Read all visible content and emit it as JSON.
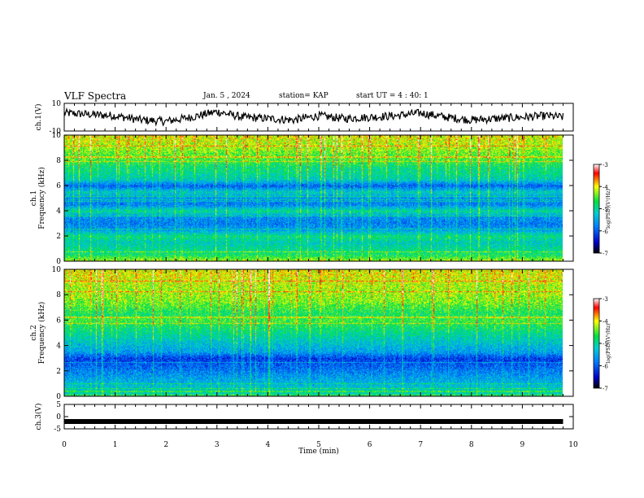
{
  "header": {
    "title": "VLF Spectra",
    "date": "Jan. 5 , 2024",
    "station": "station= KAP",
    "start_ut": "start UT =  4 : 40: 1"
  },
  "chart_data": [
    {
      "type": "line",
      "panel": "ch1-waveform",
      "ylabel": "ch.1(V)",
      "ylim": [
        -10,
        10
      ],
      "yticks": [
        "10",
        "-10"
      ],
      "xlim": [
        0,
        10
      ],
      "series": [
        {
          "color": "#000000",
          "x": [
            0,
            0.5,
            1,
            1.5,
            2,
            2.5,
            3,
            3.5,
            4,
            4.5,
            5,
            5.5,
            6,
            6.5,
            7,
            7.5,
            8,
            8.5,
            9,
            9.5,
            9.8
          ],
          "values": [
            3,
            2,
            1,
            -2,
            -3,
            0,
            4,
            0,
            -1,
            -2,
            1,
            -1,
            0,
            1,
            3,
            0,
            -2,
            -1,
            0,
            1,
            0
          ]
        }
      ]
    },
    {
      "type": "heatmap",
      "panel": "ch1-spectrogram",
      "ylabel": "ch.1\nFrequency  (kHz)",
      "ylim": [
        0,
        10
      ],
      "xlim": [
        0,
        10
      ],
      "yticks": [
        "0",
        "2",
        "4",
        "6",
        "8",
        "10"
      ],
      "data_end_min": 9.8,
      "colorbar": {
        "ticks": [
          "-3",
          "-4",
          "-5",
          "-6",
          "-7"
        ],
        "label": "log(PSD)(V²/Hz)",
        "range": [
          -7,
          -3
        ]
      },
      "profile_freq_khz": [
        0,
        0.5,
        1,
        1.5,
        2,
        2.5,
        3,
        3.5,
        4,
        4.5,
        5,
        5.5,
        6,
        6.5,
        7,
        7.5,
        8,
        8.5,
        9,
        9.5,
        10
      ],
      "profile_log_psd": [
        -4.2,
        -4.8,
        -5.0,
        -5.2,
        -4.9,
        -5.6,
        -5.8,
        -5.7,
        -5.0,
        -5.8,
        -5.7,
        -5.2,
        -6.0,
        -5.2,
        -5.0,
        -4.9,
        -4.6,
        -4.5,
        -4.3,
        -4.2,
        -4.1
      ]
    },
    {
      "type": "heatmap",
      "panel": "ch2-spectrogram",
      "ylabel": "ch.2\nFrequency  (kHz)",
      "ylim": [
        0,
        10
      ],
      "xlim": [
        0,
        10
      ],
      "yticks": [
        "0",
        "2",
        "4",
        "6",
        "8",
        "10"
      ],
      "data_end_min": 9.8,
      "colorbar": {
        "ticks": [
          "-3",
          "-4",
          "-5",
          "-6",
          "-7"
        ],
        "label": "log(PSD)(V²/Hz)",
        "range": [
          -7,
          -3
        ]
      },
      "profile_freq_khz": [
        0,
        0.5,
        1,
        1.5,
        2,
        2.5,
        3,
        3.5,
        4,
        4.5,
        5,
        5.5,
        6,
        6.5,
        7,
        7.5,
        8,
        8.5,
        9,
        9.5,
        10
      ],
      "profile_log_psd": [
        -5.0,
        -5.2,
        -5.4,
        -5.6,
        -5.8,
        -6.0,
        -6.2,
        -5.6,
        -5.4,
        -5.2,
        -5.0,
        -4.8,
        -4.6,
        -4.8,
        -4.6,
        -4.4,
        -4.3,
        -4.3,
        -4.2,
        -4.1,
        -4.1
      ]
    },
    {
      "type": "line",
      "panel": "ch3-waveform",
      "ylabel": "ch.3(V)",
      "ylim": [
        -5,
        5
      ],
      "yticks": [
        "5",
        "0",
        "-5"
      ],
      "xlim": [
        0,
        10
      ],
      "xticks": [
        "0",
        "1",
        "2",
        "3",
        "4",
        "5",
        "6",
        "7",
        "8",
        "9",
        "10"
      ],
      "xlabel": "Time  (min)",
      "series": [
        {
          "color": "#000000",
          "x": [
            0,
            9.8
          ],
          "values": [
            -2,
            -2
          ]
        }
      ]
    }
  ]
}
